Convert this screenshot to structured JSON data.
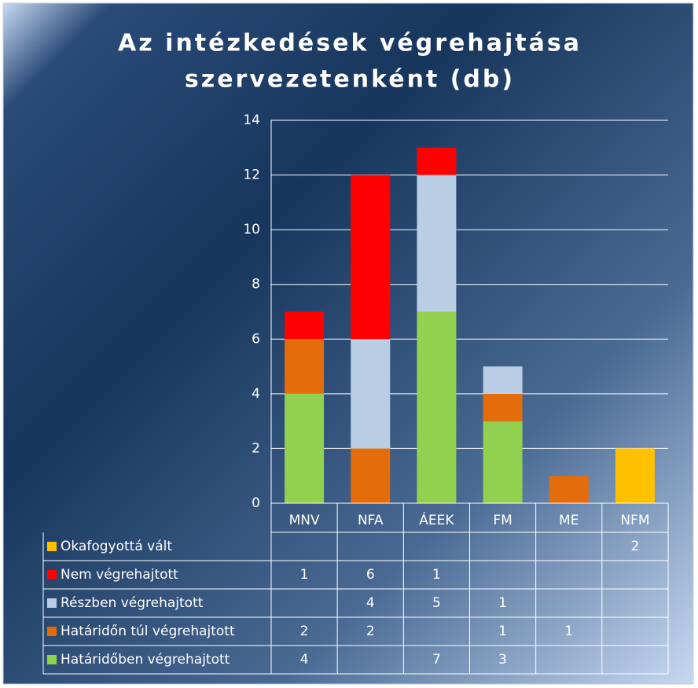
{
  "chart_data": {
    "type": "bar",
    "stacked": true,
    "title": [
      "Az intézkedések végrehajtása",
      "szervezetenként (db)"
    ],
    "categories": [
      "MNV",
      "NFA",
      "ÁEEK",
      "FM",
      "ME",
      "NFM"
    ],
    "series": [
      {
        "name": "Határidőben végrehajtott",
        "color": "#92d050",
        "values": [
          4,
          null,
          7,
          3,
          null,
          null
        ]
      },
      {
        "name": "Határidőn túl végrehajtott",
        "color": "#e46c0a",
        "values": [
          2,
          2,
          null,
          1,
          1,
          null
        ]
      },
      {
        "name": "Részben végrehajtott",
        "color": "#b9cde5",
        "values": [
          null,
          4,
          5,
          1,
          null,
          null
        ]
      },
      {
        "name": "Nem végrehajtott",
        "color": "#ff0000",
        "values": [
          1,
          6,
          1,
          null,
          null,
          null
        ]
      },
      {
        "name": "Okafogyottá vált",
        "color": "#ffc000",
        "values": [
          null,
          null,
          null,
          null,
          null,
          2
        ]
      }
    ],
    "ylim": [
      0,
      14
    ],
    "yticks": [
      0,
      2,
      4,
      6,
      8,
      10,
      12,
      14
    ],
    "grid": true,
    "data_table": true
  }
}
